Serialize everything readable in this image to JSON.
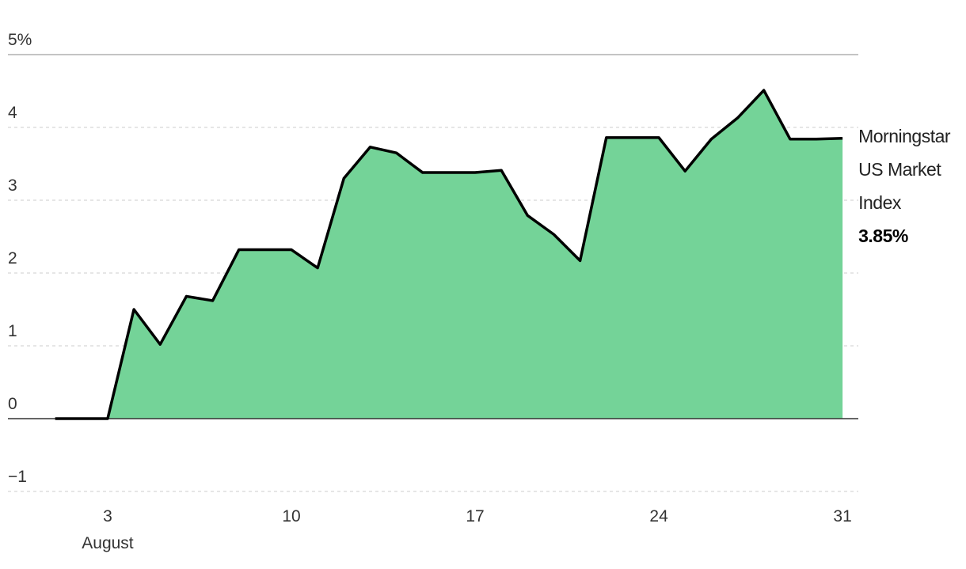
{
  "chart_data": {
    "type": "area",
    "x": [
      1,
      2,
      3,
      4,
      5,
      6,
      7,
      8,
      9,
      10,
      11,
      12,
      13,
      14,
      15,
      16,
      17,
      18,
      19,
      20,
      21,
      22,
      23,
      24,
      25,
      26,
      27,
      28,
      29,
      30,
      31
    ],
    "x_sublabel": "August",
    "series": [
      {
        "name": "Morningstar US Market Index",
        "color": "#74d398",
        "values": [
          0,
          0,
          0,
          1.5,
          1.02,
          1.68,
          1.62,
          2.32,
          2.32,
          2.32,
          2.07,
          3.3,
          3.73,
          3.65,
          3.38,
          3.38,
          3.38,
          3.41,
          2.79,
          2.53,
          2.17,
          3.86,
          3.86,
          3.86,
          3.4,
          3.84,
          4.13,
          4.51,
          3.84,
          3.84,
          3.85
        ],
        "value_labels": [
          null,
          null,
          null,
          null,
          null,
          null,
          null,
          null,
          null,
          null,
          null,
          null,
          null,
          null,
          null,
          null,
          null,
          null,
          null,
          null,
          null,
          null,
          null,
          null,
          null,
          null,
          null,
          null,
          null,
          null,
          "3.85%"
        ]
      }
    ],
    "xlim": [
      -0.8,
      31.6
    ],
    "xticks": [
      3,
      10,
      17,
      24,
      31
    ],
    "ylim": [
      -1,
      5
    ],
    "yticks": [
      {
        "value": -1,
        "label": "−1"
      },
      0,
      1,
      2,
      3,
      4,
      {
        "value": 5,
        "label": "5%"
      }
    ],
    "grid": true
  }
}
